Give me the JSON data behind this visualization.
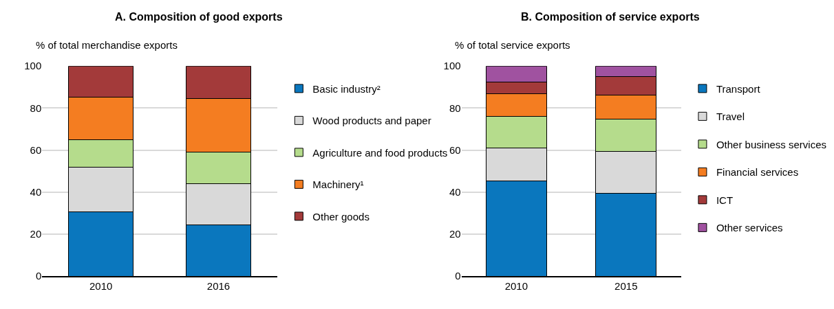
{
  "chart_data": [
    {
      "type": "bar",
      "stacked": true,
      "title": "A. Composition of good exports",
      "ylabel": "% of total merchandise exports",
      "categories": [
        "2010",
        "2016"
      ],
      "ylim": [
        0,
        100
      ],
      "yticks": [
        0,
        20,
        40,
        60,
        80,
        100
      ],
      "grid": "y",
      "legend": "right",
      "series": [
        {
          "name": "Basic industry²",
          "color": "#0a77be",
          "values": [
            30.5,
            24.3
          ]
        },
        {
          "name": "Wood products and paper",
          "color": "#d9d9d9",
          "values": [
            21.2,
            19.6
          ]
        },
        {
          "name": "Agriculture and food products",
          "color": "#b5dc8c",
          "values": [
            13.2,
            15.1
          ]
        },
        {
          "name": "Machinery¹",
          "color": "#f47d21",
          "values": [
            20.2,
            25.6
          ]
        },
        {
          "name": "Other goods",
          "color": "#a33a3a",
          "values": [
            14.9,
            15.4
          ]
        }
      ]
    },
    {
      "type": "bar",
      "stacked": true,
      "title": "B. Composition of service exports",
      "ylabel": "% of total service exports",
      "categories": [
        "2010",
        "2015"
      ],
      "ylim": [
        0,
        100
      ],
      "yticks": [
        0,
        20,
        40,
        60,
        80,
        100
      ],
      "grid": "y",
      "legend": "right",
      "series": [
        {
          "name": "Transport",
          "color": "#0a77be",
          "values": [
            45.2,
            39.3
          ]
        },
        {
          "name": "Travel",
          "color": "#d9d9d9",
          "values": [
            15.8,
            20.0
          ]
        },
        {
          "name": "Other business services",
          "color": "#b5dc8c",
          "values": [
            15.1,
            15.3
          ]
        },
        {
          "name": "Financial services",
          "color": "#f47d21",
          "values": [
            10.8,
            11.5
          ]
        },
        {
          "name": "ICT",
          "color": "#a33a3a",
          "values": [
            5.4,
            8.9
          ]
        },
        {
          "name": "Other services",
          "color": "#a052a0",
          "values": [
            7.7,
            5.0
          ]
        }
      ]
    }
  ]
}
